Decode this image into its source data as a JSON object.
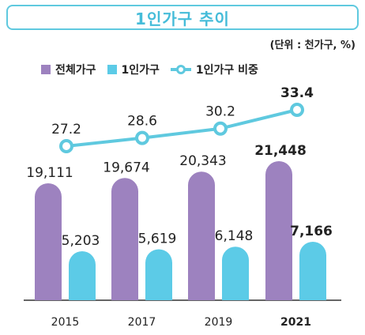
{
  "header": {
    "title": "1인가구 추이",
    "unit": "(단위 : 천가구, %)"
  },
  "legend": {
    "total": "전체가구",
    "single": "1인가구",
    "ratio": "1인가구 비중"
  },
  "colors": {
    "total": "#9d82bf",
    "single": "#5ccbe7",
    "line": "#5fc9df",
    "title": "#45bcd9"
  },
  "chart_data": {
    "type": "bar",
    "categories": [
      "2015",
      "2017",
      "2019",
      "2021"
    ],
    "series": [
      {
        "name": "전체가구",
        "values": [
          19111,
          19674,
          20343,
          21448
        ]
      },
      {
        "name": "1인가구",
        "values": [
          5203,
          5619,
          6148,
          7166
        ]
      }
    ],
    "line_series": {
      "name": "1인가구 비중",
      "values": [
        27.2,
        28.6,
        30.2,
        33.4
      ]
    },
    "bar_labels": {
      "total": [
        "19,111",
        "19,674",
        "20,343",
        "21,448"
      ],
      "single": [
        "5,203",
        "5,619",
        "6,148",
        "7,166"
      ]
    },
    "line_labels": [
      "27.2",
      "28.6",
      "30.2",
      "33.4"
    ],
    "highlight_index": 3,
    "title": "1인가구 추이",
    "xlabel": "",
    "ylabel": "",
    "legend_position": "top-left",
    "grid": false
  }
}
